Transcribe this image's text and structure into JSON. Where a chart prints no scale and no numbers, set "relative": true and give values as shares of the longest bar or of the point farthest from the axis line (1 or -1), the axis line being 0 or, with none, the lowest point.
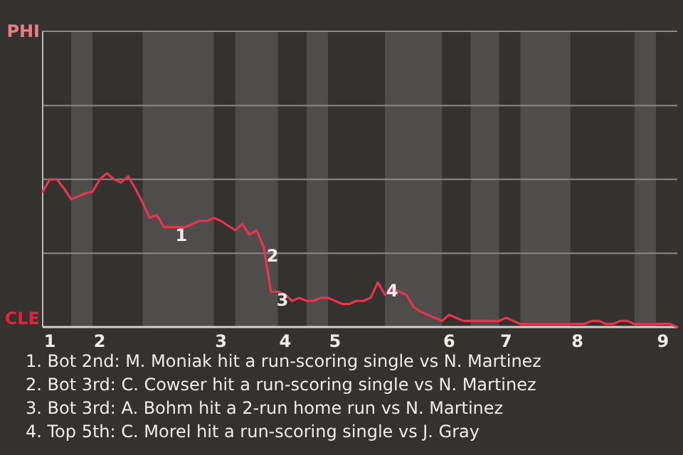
{
  "chart_data": {
    "type": "line",
    "relative": true,
    "categories": [
      null,
      "1",
      null,
      null,
      null,
      null,
      null,
      null,
      "2",
      null,
      null,
      null,
      null,
      null,
      null,
      null,
      null,
      null,
      null,
      null,
      null,
      null,
      null,
      null,
      null,
      "3",
      null,
      null,
      null,
      null,
      null,
      null,
      null,
      null,
      "4",
      null,
      null,
      null,
      null,
      null,
      null,
      "5",
      null,
      null,
      null,
      null,
      null,
      null,
      null,
      null,
      null,
      null,
      null,
      null,
      null,
      null,
      null,
      "6",
      null,
      null,
      null,
      null,
      null,
      null,
      null,
      "7",
      null,
      null,
      null,
      null,
      null,
      null,
      null,
      null,
      null,
      "8",
      null,
      null,
      null,
      null,
      null,
      null,
      null,
      null,
      null,
      null,
      null,
      "9",
      null,
      null
    ],
    "series": [
      {
        "color": "#e8354d",
        "values": [
          0.88,
          0.96,
          0.96,
          0.9,
          0.83,
          0.85,
          0.87,
          0.88,
          0.96,
          1,
          0.96,
          0.94,
          0.98,
          0.9,
          0.81,
          0.71,
          0.73,
          0.65,
          0.65,
          0.65,
          0.65,
          0.67,
          0.69,
          0.69,
          0.71,
          0.69,
          0.66,
          0.63,
          0.67,
          0.6,
          0.63,
          0.52,
          0.23,
          0.23,
          0.21,
          0.17,
          0.19,
          0.17,
          0.17,
          0.19,
          0.19,
          0.17,
          0.15,
          0.15,
          0.17,
          0.17,
          0.19,
          0.29,
          0.21,
          0.25,
          0.23,
          0.21,
          0.13,
          0.1,
          0.08,
          0.06,
          0.04,
          0.08,
          0.06,
          0.04,
          0.04,
          0.04,
          0.04,
          0.04,
          0.04,
          0.06,
          0.04,
          0.02,
          0.02,
          0.02,
          0.02,
          0.02,
          0.02,
          0.02,
          0.02,
          0.02,
          0.02,
          0.04,
          0.04,
          0.02,
          0.02,
          0.04,
          0.04,
          0.02,
          0.02,
          0.02,
          0.02,
          0.02,
          0.02,
          0
        ]
      }
    ],
    "ref_lines": [
      {
        "axis": "y",
        "value": 0.48,
        "color": "#8a8987"
      },
      {
        "axis": "y",
        "value": 0.96,
        "color": "#8a8987"
      },
      {
        "axis": "y",
        "value": 1.44,
        "color": "#8a8987"
      }
    ],
    "annotations": [
      "PHI",
      "CLE",
      "1",
      "2",
      "3",
      "4",
      "1. Bot 2nd: M. Moniak hit a run-scoring single vs N. Martinez",
      "2. Bot 3rd: C. Cowser hit a run-scoring single vs N. Martinez",
      "3. Bot 3rd: A. Bohm hit a 2-run home run vs N. Martinez",
      "4. Top 5th: C. Morel hit a run-scoring single vs J. Gray"
    ],
    "marker": "none",
    "line_style": "solid"
  }
}
